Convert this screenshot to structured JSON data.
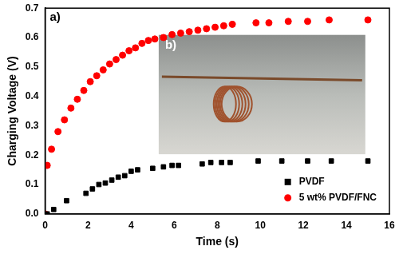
{
  "chart_data": {
    "type": "scatter",
    "x_label": "Time (s)",
    "y_label": "Charging Voltage (V)",
    "xlim": [
      0,
      16
    ],
    "xticks": [
      0,
      2,
      4,
      6,
      8,
      10,
      12,
      14,
      16
    ],
    "ylim": [
      0,
      0.7
    ],
    "yticks": [
      {
        "value": 0,
        "label": "0.0"
      },
      0.1,
      0.2,
      0.3,
      0.4,
      0.5,
      0.6,
      0.7
    ],
    "grid": false,
    "legend": "lower right",
    "annotations": [
      {
        "text": "a)"
      },
      {
        "text": "b)"
      }
    ],
    "series": [
      {
        "name": "PVDF",
        "color": "#000000",
        "marker": "square",
        "x": [
          0.1,
          0.4,
          1.0,
          1.9,
          2.2,
          2.5,
          2.8,
          3.1,
          3.4,
          3.7,
          4.0,
          4.3,
          5.0,
          5.5,
          5.9,
          6.2,
          7.3,
          7.7,
          8.2,
          8.6,
          9.9,
          11.0,
          12.2,
          13.3,
          15.0
        ],
        "values": [
          0.0,
          0.015,
          0.045,
          0.07,
          0.085,
          0.1,
          0.105,
          0.115,
          0.125,
          0.13,
          0.145,
          0.15,
          0.155,
          0.16,
          0.165,
          0.165,
          0.17,
          0.175,
          0.175,
          0.175,
          0.18,
          0.18,
          0.18,
          0.18,
          0.18
        ]
      },
      {
        "name": "5 wt% PVDF/FNC",
        "color": "#ff0000",
        "marker": "circle",
        "x": [
          0.0,
          0.1,
          0.3,
          0.6,
          0.9,
          1.2,
          1.5,
          1.8,
          2.1,
          2.4,
          2.7,
          3.0,
          3.3,
          3.6,
          3.9,
          4.2,
          4.5,
          4.8,
          5.1,
          5.5,
          5.9,
          6.3,
          6.7,
          7.1,
          7.5,
          7.9,
          8.3,
          8.7,
          9.8,
          10.4,
          11.3,
          12.2,
          13.2,
          15.0
        ],
        "values": [
          0.0,
          0.165,
          0.22,
          0.28,
          0.32,
          0.36,
          0.39,
          0.42,
          0.45,
          0.47,
          0.49,
          0.51,
          0.525,
          0.54,
          0.555,
          0.565,
          0.58,
          0.59,
          0.595,
          0.6,
          0.61,
          0.615,
          0.62,
          0.625,
          0.63,
          0.635,
          0.64,
          0.645,
          0.65,
          0.65,
          0.655,
          0.655,
          0.66,
          0.66
        ]
      }
    ]
  }
}
